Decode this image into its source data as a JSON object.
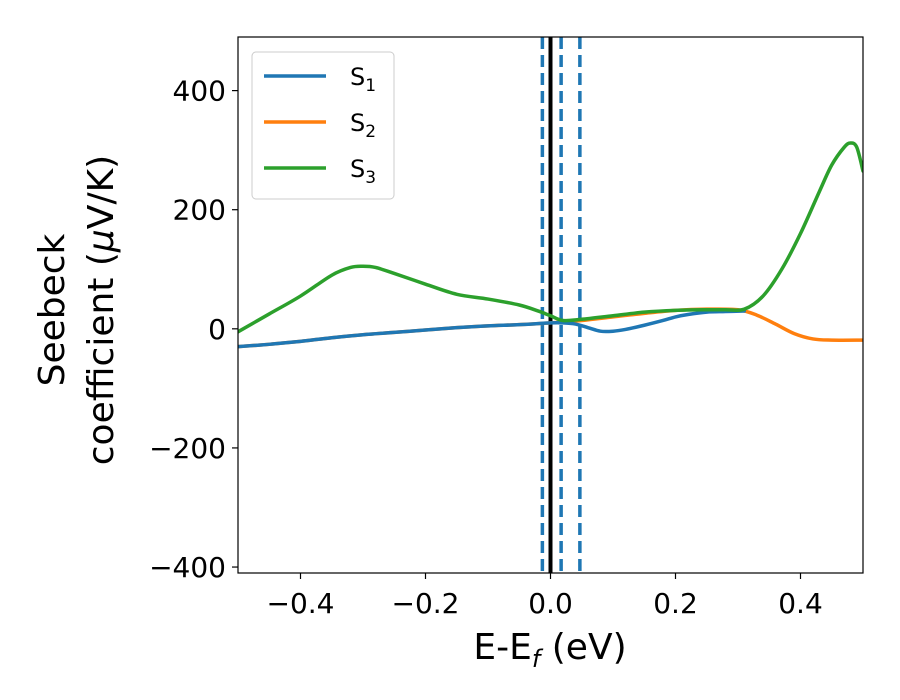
{
  "chart_data": {
    "type": "line",
    "title": "",
    "xlabel": "E-E",
    "xlabel_sub": "f",
    "xlabel_suffix": " (eV)",
    "ylabel_line1": "Seebeck",
    "ylabel_line2_prefix": "coefficient  (",
    "ylabel_mu": "μ",
    "ylabel_line2_suffix": "V/K)",
    "xlim": [
      -0.5,
      0.5
    ],
    "ylim": [
      -410,
      490
    ],
    "x_ticks": [
      -0.4,
      -0.2,
      0.0,
      0.2,
      0.4
    ],
    "x_tick_labels": [
      "−0.4",
      "−0.2",
      "0.0",
      "0.2",
      "0.4"
    ],
    "y_ticks": [
      -400,
      -200,
      0,
      200,
      400
    ],
    "y_tick_labels": [
      "−400",
      "−200",
      "0",
      "200",
      "400"
    ],
    "legend_position": "upper-left",
    "series": [
      {
        "name": "S",
        "sub": "1",
        "color": "#1f77b4",
        "x": [
          -0.5,
          -0.45,
          -0.4,
          -0.35,
          -0.3,
          -0.25,
          -0.2,
          -0.15,
          -0.1,
          -0.05,
          0.0,
          0.02,
          0.04,
          0.06,
          0.08,
          0.1,
          0.12,
          0.15,
          0.18,
          0.2,
          0.22,
          0.25,
          0.28,
          0.31
        ],
        "values": [
          -30,
          -26,
          -21,
          -15,
          -10,
          -6,
          -2,
          2,
          5,
          7,
          10,
          10,
          8,
          2,
          -4,
          -4,
          -1,
          6,
          14,
          20,
          24,
          28,
          29,
          30
        ]
      },
      {
        "name": "S",
        "sub": "2",
        "color": "#ff7f0e",
        "x": [
          -0.5,
          -0.45,
          -0.4,
          -0.35,
          -0.3,
          -0.25,
          -0.2,
          -0.15,
          -0.1,
          -0.05,
          0.0,
          0.05,
          0.1,
          0.15,
          0.2,
          0.25,
          0.3,
          0.33,
          0.36,
          0.39,
          0.42,
          0.45,
          0.5
        ],
        "values": [
          -30,
          -26,
          -21,
          -15,
          -10,
          -6,
          -2,
          2,
          5,
          7,
          10,
          14,
          20,
          26,
          31,
          33,
          32,
          23,
          8,
          -8,
          -17,
          -19,
          -19
        ]
      },
      {
        "name": "S",
        "sub": "3",
        "color": "#2ca02c",
        "x": [
          -0.5,
          -0.45,
          -0.4,
          -0.35,
          -0.32,
          -0.3,
          -0.28,
          -0.25,
          -0.2,
          -0.15,
          -0.1,
          -0.05,
          -0.02,
          0.0,
          0.02,
          0.05,
          0.1,
          0.15,
          0.2,
          0.25,
          0.28,
          0.31,
          0.34,
          0.37,
          0.4,
          0.43,
          0.45,
          0.47,
          0.48,
          0.49,
          0.5
        ],
        "values": [
          -5,
          25,
          55,
          90,
          103,
          105,
          103,
          93,
          75,
          58,
          50,
          40,
          30,
          22,
          14,
          16,
          22,
          28,
          31,
          32,
          32,
          33,
          55,
          100,
          160,
          230,
          275,
          305,
          312,
          305,
          265
        ]
      }
    ],
    "vlines": [
      {
        "x": 0.0,
        "color": "#000000",
        "style": "solid"
      },
      {
        "x": -0.013,
        "color": "#1f77b4",
        "style": "dashed"
      },
      {
        "x": 0.017,
        "color": "#1f77b4",
        "style": "dashed"
      },
      {
        "x": 0.047,
        "color": "#1f77b4",
        "style": "dashed"
      }
    ]
  }
}
